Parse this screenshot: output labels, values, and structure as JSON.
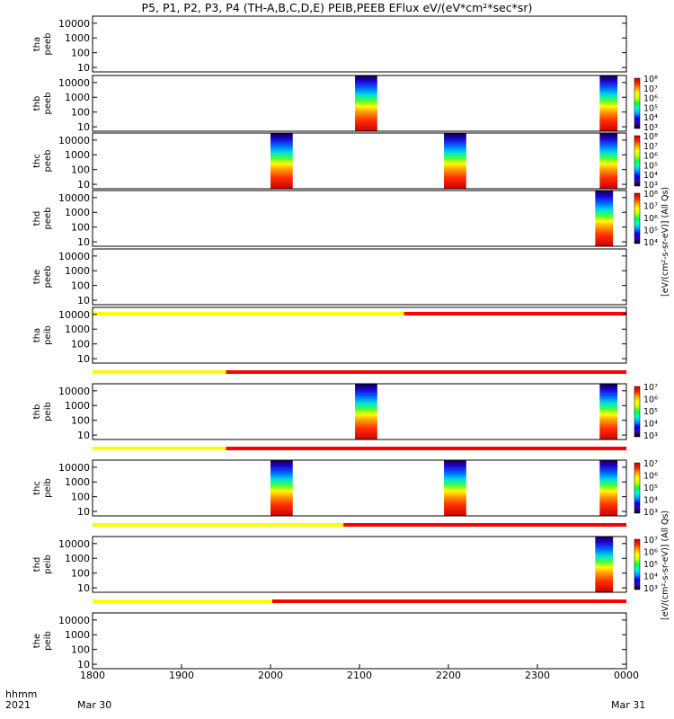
{
  "title": "P5, P1, P2, P3, P4 (TH-A,B,C,D,E) PEIB,PEEB EFlux eV/(eV*cm²*sec*sr)",
  "colorbar_labels": {
    "electrons": "[eV/(cm²-s-sr-eV)] (All Qs)",
    "ions": "[eV/(cm²-s-sr-eV)] (All Qs)"
  },
  "footer": {
    "time_label": "hhmm",
    "year_label": "2021",
    "start_date": "Mar 30",
    "end_date": "Mar 31"
  },
  "chart_data": {
    "type": "heatmap",
    "x_axis": {
      "ticks": [
        "1800",
        "1900",
        "2000",
        "2100",
        "2200",
        "2300",
        "0000"
      ],
      "range_hours": [
        18,
        24
      ]
    },
    "y_axis": {
      "scale": "log",
      "range": [
        5,
        30000
      ],
      "ticks": [
        "10",
        "100",
        "1000",
        "10000"
      ]
    },
    "colormap": [
      "#000000",
      "#3b00a8",
      "#0000ff",
      "#00a0ff",
      "#00ffd0",
      "#00ff40",
      "#c8ff00",
      "#ffff00",
      "#ffa000",
      "#ff2000",
      "#cc0000"
    ],
    "panels": [
      {
        "id": "tha-peeb",
        "label1": "tha",
        "label2": "peeb",
        "blocks": [],
        "colorbar": false,
        "flag": false
      },
      {
        "id": "thb-peeb",
        "label1": "thb",
        "label2": "peeb",
        "blocks": [
          [
            20.95,
            21.2
          ],
          [
            23.7,
            23.9
          ]
        ],
        "colorbar": true,
        "cb_ticks": [
          "10³",
          "10⁴",
          "10⁵",
          "10⁶",
          "10⁷",
          "10⁸"
        ],
        "flag": false
      },
      {
        "id": "thc-peeb",
        "label1": "thc",
        "label2": "peeb",
        "blocks": [
          [
            20.0,
            20.25
          ],
          [
            21.95,
            22.2
          ],
          [
            23.7,
            23.9
          ]
        ],
        "colorbar": true,
        "cb_ticks": [
          "10³",
          "10⁴",
          "10⁵",
          "10⁶",
          "10⁷",
          "10⁸"
        ],
        "flag": false
      },
      {
        "id": "thd-peeb",
        "label1": "thd",
        "label2": "peeb",
        "blocks": [
          [
            23.65,
            23.85
          ]
        ],
        "colorbar": true,
        "cb_ticks": [
          "10⁴",
          "10⁵",
          "10⁶",
          "10⁷",
          "10⁸"
        ],
        "flag": false
      },
      {
        "id": "the-peeb",
        "label1": "the",
        "label2": "peeb",
        "blocks": [],
        "colorbar": false,
        "flag": true,
        "flag_switch": 21.5
      },
      {
        "id": "tha-peib",
        "label1": "tha",
        "label2": "peib",
        "blocks": [],
        "colorbar": false,
        "flag": true,
        "flag_switch": 19.5
      },
      {
        "id": "thb-peib",
        "label1": "thb",
        "label2": "peib",
        "blocks": [
          [
            20.95,
            21.2
          ],
          [
            23.7,
            23.9
          ]
        ],
        "colorbar": true,
        "cb_ticks": [
          "10³",
          "10⁴",
          "10⁵",
          "10⁶",
          "10⁷"
        ],
        "flag": true,
        "flag_switch": 19.5
      },
      {
        "id": "thc-peib",
        "label1": "thc",
        "label2": "peib",
        "blocks": [
          [
            20.0,
            20.25
          ],
          [
            21.95,
            22.2
          ],
          [
            23.7,
            23.9
          ]
        ],
        "colorbar": true,
        "cb_ticks": [
          "10³",
          "10⁴",
          "10⁵",
          "10⁶",
          "10⁷"
        ],
        "flag": true,
        "flag_switch": 20.82
      },
      {
        "id": "thd-peib",
        "label1": "thd",
        "label2": "peib",
        "blocks": [
          [
            23.65,
            23.85
          ]
        ],
        "colorbar": true,
        "cb_ticks": [
          "10³",
          "10⁴",
          "10⁵",
          "10⁶",
          "10⁷"
        ],
        "flag": true,
        "flag_switch": 20.02
      },
      {
        "id": "the-peib",
        "label1": "the",
        "label2": "peib",
        "blocks": [],
        "colorbar": false,
        "flag": false
      }
    ]
  }
}
